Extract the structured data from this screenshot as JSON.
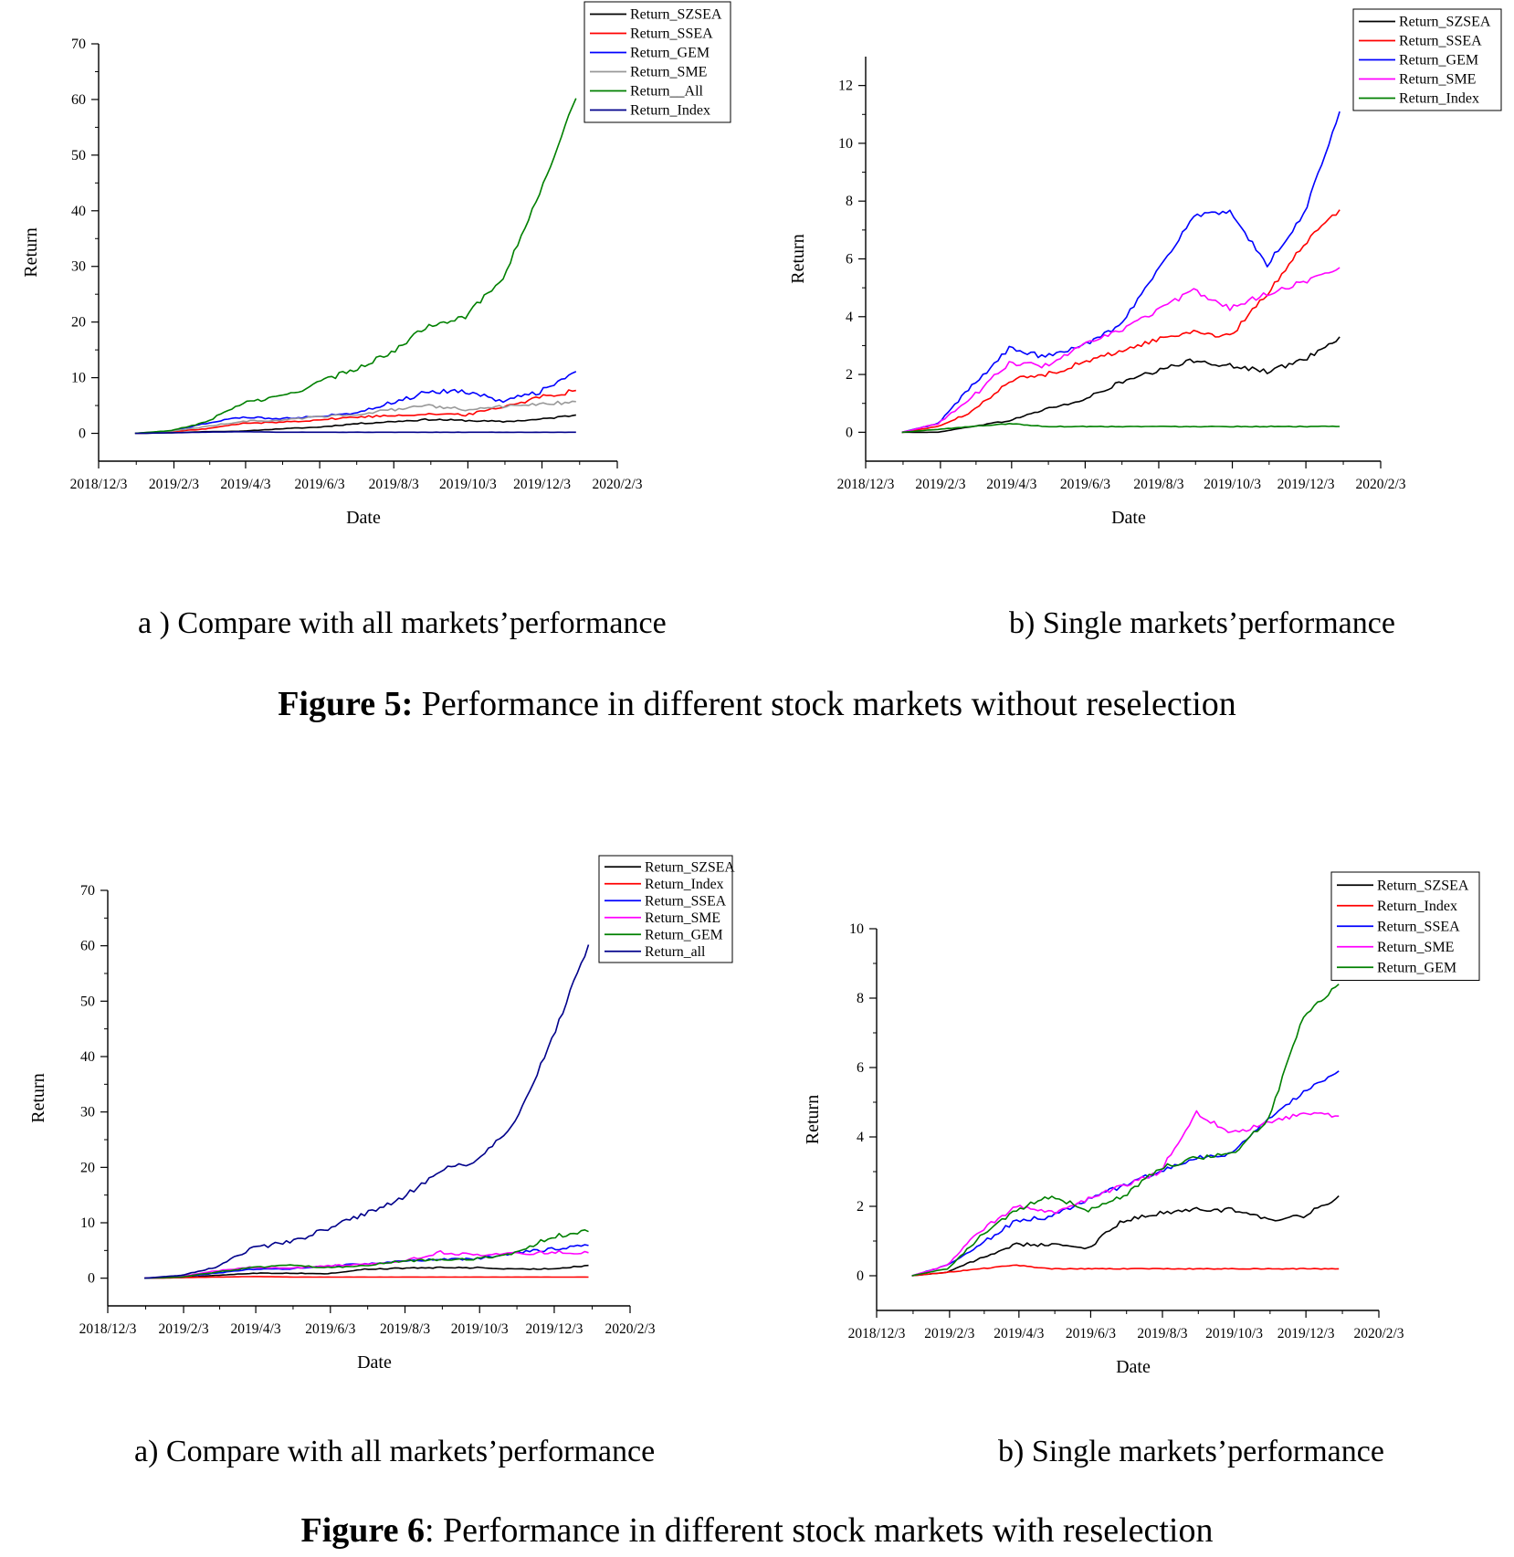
{
  "figures": [
    {
      "caption_label": "Figure 5:",
      "caption_text": " Performance in different stock markets without reselection",
      "subcaptions": [
        "a ) Compare with all markets’performance",
        "b) Single markets’performance"
      ]
    },
    {
      "caption_label": "Figure 6",
      "caption_text": ": Performance in different stock markets with reselection",
      "subcaptions": [
        "a) Compare with all markets’performance",
        "b) Single markets’performance"
      ]
    }
  ],
  "chart_data": [
    {
      "type": "line",
      "panel": "Figure 5 a",
      "xlabel": "Date",
      "ylabel": "Return",
      "x_ticks": [
        "2018/12/3",
        "2019/2/3",
        "2019/4/3",
        "2019/6/3",
        "2019/8/3",
        "2019/10/3",
        "2019/12/3",
        "2020/2/3"
      ],
      "xlim": [
        "2018/12/3",
        "2020/2/3"
      ],
      "y_ticks": [
        0,
        10,
        20,
        30,
        40,
        50,
        60,
        70
      ],
      "ylim": [
        -5,
        70
      ],
      "grid": false,
      "legend_position": "top-right",
      "x": [
        "2019/1/2",
        "2019/2/1",
        "2019/3/1",
        "2019/4/1",
        "2019/5/1",
        "2019/6/1",
        "2019/7/1",
        "2019/8/1",
        "2019/9/1",
        "2019/10/1",
        "2019/11/1",
        "2019/12/1",
        "2019/12/31"
      ],
      "series": [
        {
          "name": "Return_SZSEA",
          "color": "#000000",
          "values": [
            0,
            0.1,
            0.3,
            0.4,
            0.8,
            1.1,
            1.7,
            2.1,
            2.5,
            2.3,
            2.1,
            2.5,
            3.3
          ]
        },
        {
          "name": "Return_SSEA",
          "color": "#ff0000",
          "values": [
            0,
            0.3,
            0.8,
            1.8,
            2.0,
            2.4,
            2.9,
            3.2,
            3.5,
            3.3,
            4.8,
            6.5,
            7.7
          ]
        },
        {
          "name": "Return_GEM",
          "color": "#0000ff",
          "values": [
            0,
            0.4,
            1.8,
            2.9,
            2.7,
            3.0,
            3.7,
            5.5,
            7.5,
            7.6,
            5.8,
            7.5,
            11.1
          ]
        },
        {
          "name": "Return_SME",
          "color": "#999999",
          "values": [
            0,
            0.4,
            1.2,
            2.2,
            2.3,
            3.0,
            3.4,
            4.2,
            4.9,
            4.3,
            4.8,
            5.2,
            5.7
          ]
        },
        {
          "name": "Return__All",
          "color": "#008000",
          "values": [
            0,
            0.5,
            2.0,
            5.5,
            6.5,
            9.0,
            11.5,
            14.5,
            19.5,
            21.0,
            28.0,
            43.0,
            60.2
          ]
        },
        {
          "name": "Return_Index",
          "color": "#00008b",
          "values": [
            0,
            0.1,
            0.2,
            0.3,
            0.2,
            0.2,
            0.2,
            0.2,
            0.2,
            0.2,
            0.2,
            0.2,
            0.2
          ]
        }
      ]
    },
    {
      "type": "line",
      "panel": "Figure 5 b",
      "xlabel": "Date",
      "ylabel": "Return",
      "x_ticks": [
        "2018/12/3",
        "2019/2/3",
        "2019/4/3",
        "2019/6/3",
        "2019/8/3",
        "2019/10/3",
        "2019/12/3",
        "2020/2/3"
      ],
      "xlim": [
        "2018/12/3",
        "2020/2/3"
      ],
      "y_ticks": [
        0,
        2,
        4,
        6,
        8,
        10,
        12
      ],
      "ylim": [
        -1,
        13
      ],
      "grid": false,
      "legend_position": "top-right",
      "x": [
        "2019/1/2",
        "2019/2/1",
        "2019/3/1",
        "2019/4/1",
        "2019/5/1",
        "2019/6/1",
        "2019/7/1",
        "2019/8/1",
        "2019/9/1",
        "2019/10/1",
        "2019/11/1",
        "2019/12/1",
        "2019/12/31"
      ],
      "series": [
        {
          "name": "Return_SZSEA",
          "color": "#000000",
          "values": [
            0,
            0.0,
            0.2,
            0.4,
            0.8,
            1.1,
            1.7,
            2.1,
            2.5,
            2.3,
            2.1,
            2.5,
            3.3
          ]
        },
        {
          "name": "Return_SSEA",
          "color": "#ff0000",
          "values": [
            0,
            0.2,
            0.7,
            1.8,
            2.0,
            2.4,
            2.8,
            3.2,
            3.5,
            3.3,
            4.8,
            6.5,
            7.7
          ]
        },
        {
          "name": "Return_GEM",
          "color": "#0000ff",
          "values": [
            0,
            0.3,
            1.6,
            2.9,
            2.6,
            3.0,
            3.7,
            5.5,
            7.5,
            7.6,
            5.8,
            7.5,
            11.1
          ]
        },
        {
          "name": "Return_SME",
          "color": "#ff00ff",
          "values": [
            0,
            0.3,
            1.2,
            2.4,
            2.3,
            3.0,
            3.5,
            4.2,
            4.9,
            4.3,
            4.8,
            5.2,
            5.7
          ]
        },
        {
          "name": "Return_Index",
          "color": "#008000",
          "values": [
            0,
            0.1,
            0.2,
            0.3,
            0.2,
            0.2,
            0.2,
            0.2,
            0.2,
            0.2,
            0.2,
            0.2,
            0.2
          ]
        }
      ]
    },
    {
      "type": "line",
      "panel": "Figure 6 a",
      "xlabel": "Date",
      "ylabel": "Return",
      "x_ticks": [
        "2018/12/3",
        "2019/2/3",
        "2019/4/3",
        "2019/6/3",
        "2019/8/3",
        "2019/10/3",
        "2019/12/3",
        "2020/2/3"
      ],
      "xlim": [
        "2018/12/3",
        "2020/2/3"
      ],
      "y_ticks": [
        0,
        10,
        20,
        30,
        40,
        50,
        60,
        70
      ],
      "ylim": [
        -5,
        70
      ],
      "grid": false,
      "legend_position": "top-right",
      "x": [
        "2019/1/2",
        "2019/2/1",
        "2019/3/1",
        "2019/4/1",
        "2019/5/1",
        "2019/6/1",
        "2019/7/1",
        "2019/8/1",
        "2019/9/1",
        "2019/10/1",
        "2019/11/1",
        "2019/12/1",
        "2019/12/31"
      ],
      "series": [
        {
          "name": "Return_SZSEA",
          "color": "#000000",
          "values": [
            0,
            0.1,
            0.5,
            0.9,
            0.9,
            0.8,
            1.6,
            1.8,
            1.9,
            1.9,
            1.6,
            1.7,
            2.3
          ]
        },
        {
          "name": "Return_Index",
          "color": "#ff0000",
          "values": [
            0,
            0.1,
            0.2,
            0.3,
            0.2,
            0.2,
            0.2,
            0.2,
            0.2,
            0.2,
            0.2,
            0.2,
            0.2
          ]
        },
        {
          "name": "Return_SSEA",
          "color": "#0000ff",
          "values": [
            0,
            0.3,
            0.9,
            1.6,
            1.7,
            2.2,
            2.6,
            3.0,
            3.4,
            3.5,
            4.5,
            5.3,
            5.9
          ]
        },
        {
          "name": "Return_SME",
          "color": "#ff00ff",
          "values": [
            0,
            0.3,
            1.3,
            2.0,
            1.8,
            2.2,
            2.6,
            3.0,
            4.7,
            4.1,
            4.4,
            4.7,
            4.6
          ]
        },
        {
          "name": "Return_GEM",
          "color": "#008000",
          "values": [
            0,
            0.2,
            1.1,
            1.9,
            2.3,
            1.9,
            2.3,
            3.1,
            3.4,
            3.5,
            4.5,
            7.5,
            8.4
          ]
        },
        {
          "name": "Return_all",
          "color": "#00008b",
          "values": [
            0,
            0.5,
            2.0,
            5.5,
            6.5,
            9.0,
            11.5,
            14.5,
            19.5,
            21.0,
            28.0,
            43.0,
            60.2
          ]
        }
      ]
    },
    {
      "type": "line",
      "panel": "Figure 6 b",
      "xlabel": "Date",
      "ylabel": "Return",
      "x_ticks": [
        "2018/12/3",
        "2019/2/3",
        "2019/4/3",
        "2019/6/3",
        "2019/8/3",
        "2019/10/3",
        "2019/12/3",
        "2020/2/3"
      ],
      "xlim": [
        "2018/12/3",
        "2020/2/3"
      ],
      "y_ticks": [
        0,
        2,
        4,
        6,
        8,
        10
      ],
      "ylim": [
        -1,
        10
      ],
      "grid": false,
      "legend_position": "top-right",
      "x": [
        "2019/1/2",
        "2019/2/1",
        "2019/3/1",
        "2019/4/1",
        "2019/5/1",
        "2019/6/1",
        "2019/7/1",
        "2019/8/1",
        "2019/9/1",
        "2019/10/1",
        "2019/11/1",
        "2019/12/1",
        "2019/12/31"
      ],
      "series": [
        {
          "name": "Return_SZSEA",
          "color": "#000000",
          "values": [
            0,
            0.1,
            0.5,
            0.9,
            0.9,
            0.8,
            1.6,
            1.8,
            1.9,
            1.9,
            1.6,
            1.7,
            2.3
          ]
        },
        {
          "name": "Return_Index",
          "color": "#ff0000",
          "values": [
            0,
            0.1,
            0.2,
            0.3,
            0.2,
            0.2,
            0.2,
            0.2,
            0.2,
            0.2,
            0.2,
            0.2,
            0.2
          ]
        },
        {
          "name": "Return_SSEA",
          "color": "#0000ff",
          "values": [
            0,
            0.3,
            0.9,
            1.6,
            1.7,
            2.2,
            2.6,
            3.0,
            3.4,
            3.5,
            4.5,
            5.3,
            5.9
          ]
        },
        {
          "name": "Return_SME",
          "color": "#ff00ff",
          "values": [
            0,
            0.3,
            1.3,
            2.0,
            1.8,
            2.2,
            2.6,
            3.0,
            4.7,
            4.1,
            4.4,
            4.7,
            4.6
          ]
        },
        {
          "name": "Return_GEM",
          "color": "#008000",
          "values": [
            0,
            0.2,
            1.1,
            1.9,
            2.3,
            1.9,
            2.3,
            3.1,
            3.4,
            3.5,
            4.5,
            7.5,
            8.4
          ]
        }
      ]
    }
  ]
}
